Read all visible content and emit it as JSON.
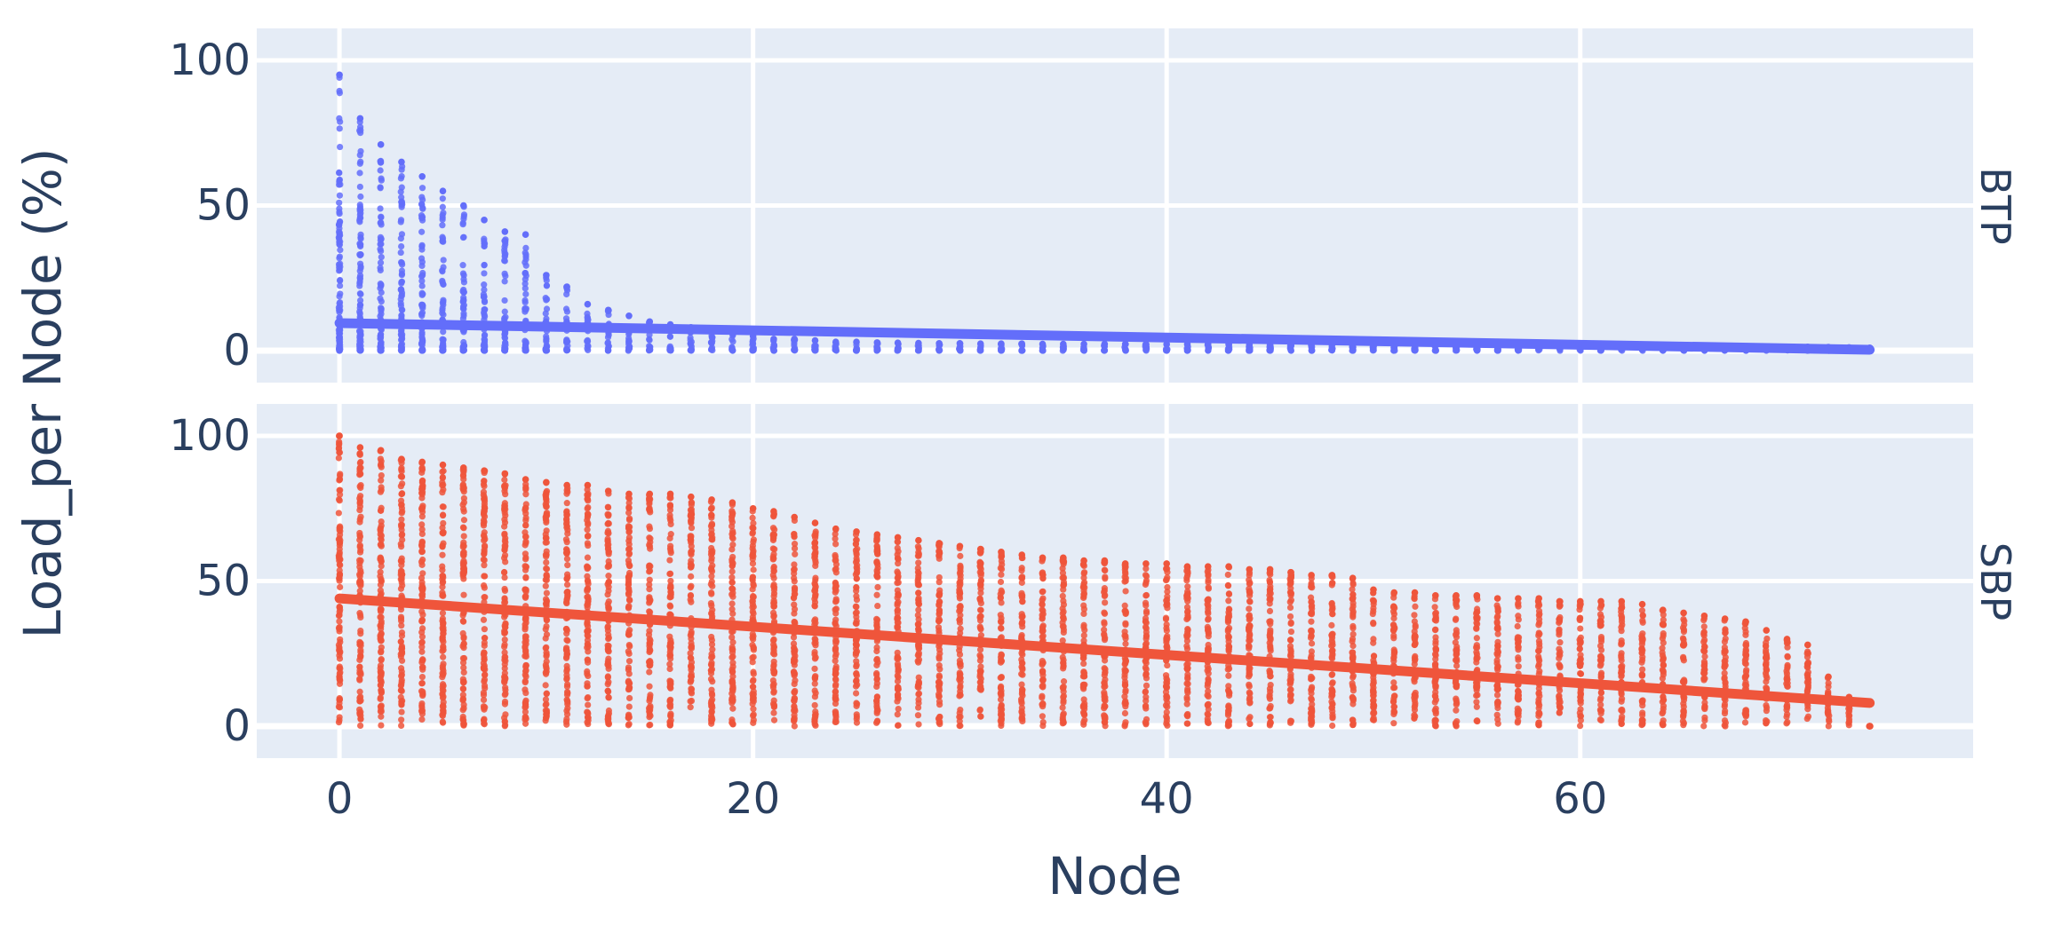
{
  "chart_data": {
    "type": "scatter",
    "xlabel": "Node",
    "ylabel": "Load_per Node (%)",
    "xlim": [
      -4,
      79
    ],
    "x_ticks": [
      0,
      20,
      40,
      60
    ],
    "y_ticks": [
      0,
      50,
      100
    ],
    "grid": true,
    "facets": [
      {
        "label": "BTP",
        "ylim": [
          -11,
          111
        ],
        "color": "#636efa",
        "points_mode": "per-node vertical columns of samples",
        "node_max": [
          95,
          80,
          71,
          65,
          60,
          55,
          50,
          45,
          41,
          40,
          26,
          22,
          16,
          14,
          12,
          10,
          9,
          8,
          7,
          6,
          5,
          4,
          4,
          3.5,
          3,
          3,
          2.8,
          2.7,
          2.6,
          2.5,
          2.5,
          2.4,
          2.4,
          2.4,
          2.3,
          2.3,
          2.3,
          2.3,
          2.3,
          2.2,
          2.2,
          2.2,
          2.2,
          2.2,
          2.1,
          2.1,
          2.1,
          2.1,
          2.1,
          2,
          2,
          2,
          2,
          2,
          1.9,
          1.9,
          1.9,
          1.9,
          1.8,
          1.8,
          1.8,
          1.7,
          1.7,
          1.6,
          1.6,
          1.6,
          1.5,
          1.5,
          1.4,
          1.4,
          1.3,
          1.3,
          1.2,
          1.1,
          1
        ],
        "node_min": 0,
        "trend": {
          "x": [
            0,
            74
          ],
          "y": [
            9.5,
            0.3
          ]
        }
      },
      {
        "label": "SBP",
        "ylim": [
          -11,
          111
        ],
        "color": "#ef553b",
        "points_mode": "per-node vertical columns of samples",
        "node_max": [
          100,
          96,
          95,
          92,
          91,
          90,
          89,
          88,
          87,
          85,
          84,
          83,
          83,
          81,
          80,
          80,
          80,
          79,
          78,
          77,
          75,
          74,
          72,
          70,
          68,
          67,
          66,
          65,
          64,
          63,
          62,
          61,
          60,
          59,
          58,
          58,
          57,
          57,
          56,
          56,
          56,
          55,
          55,
          55,
          54,
          54,
          53,
          52,
          52,
          51,
          47,
          46,
          46,
          45,
          45,
          45,
          44,
          44,
          44,
          43,
          43,
          43,
          43,
          42,
          40,
          39,
          38,
          37,
          36,
          33,
          30,
          28,
          17,
          10,
          0
        ],
        "node_min": 0,
        "trend": {
          "x": [
            0,
            74
          ],
          "y": [
            44,
            8
          ]
        }
      }
    ]
  }
}
